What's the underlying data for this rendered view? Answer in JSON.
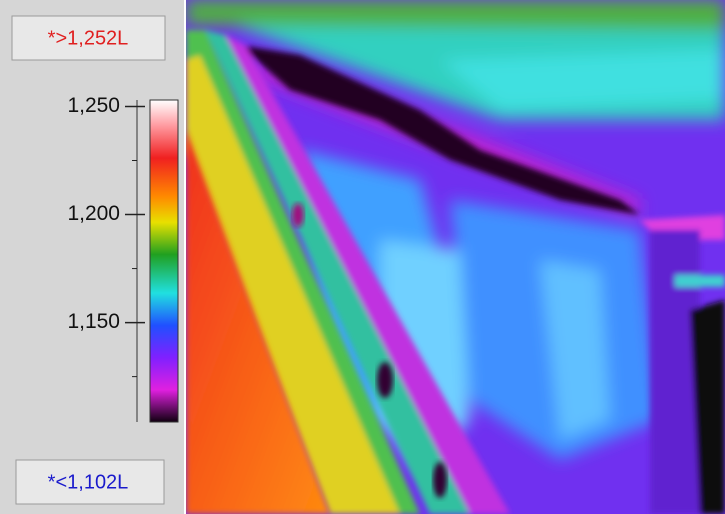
{
  "scale": {
    "max_label": "*>1,252L",
    "min_label": "*<1,102L",
    "lim": [
      1104,
      1253
    ],
    "ticks": [
      {
        "value": 1250,
        "label": "1,250"
      },
      {
        "value": 1200,
        "label": "1,200"
      },
      {
        "value": 1150,
        "label": "1,150"
      }
    ],
    "minor_ticks": [
      1225,
      1175,
      1125
    ]
  }
}
